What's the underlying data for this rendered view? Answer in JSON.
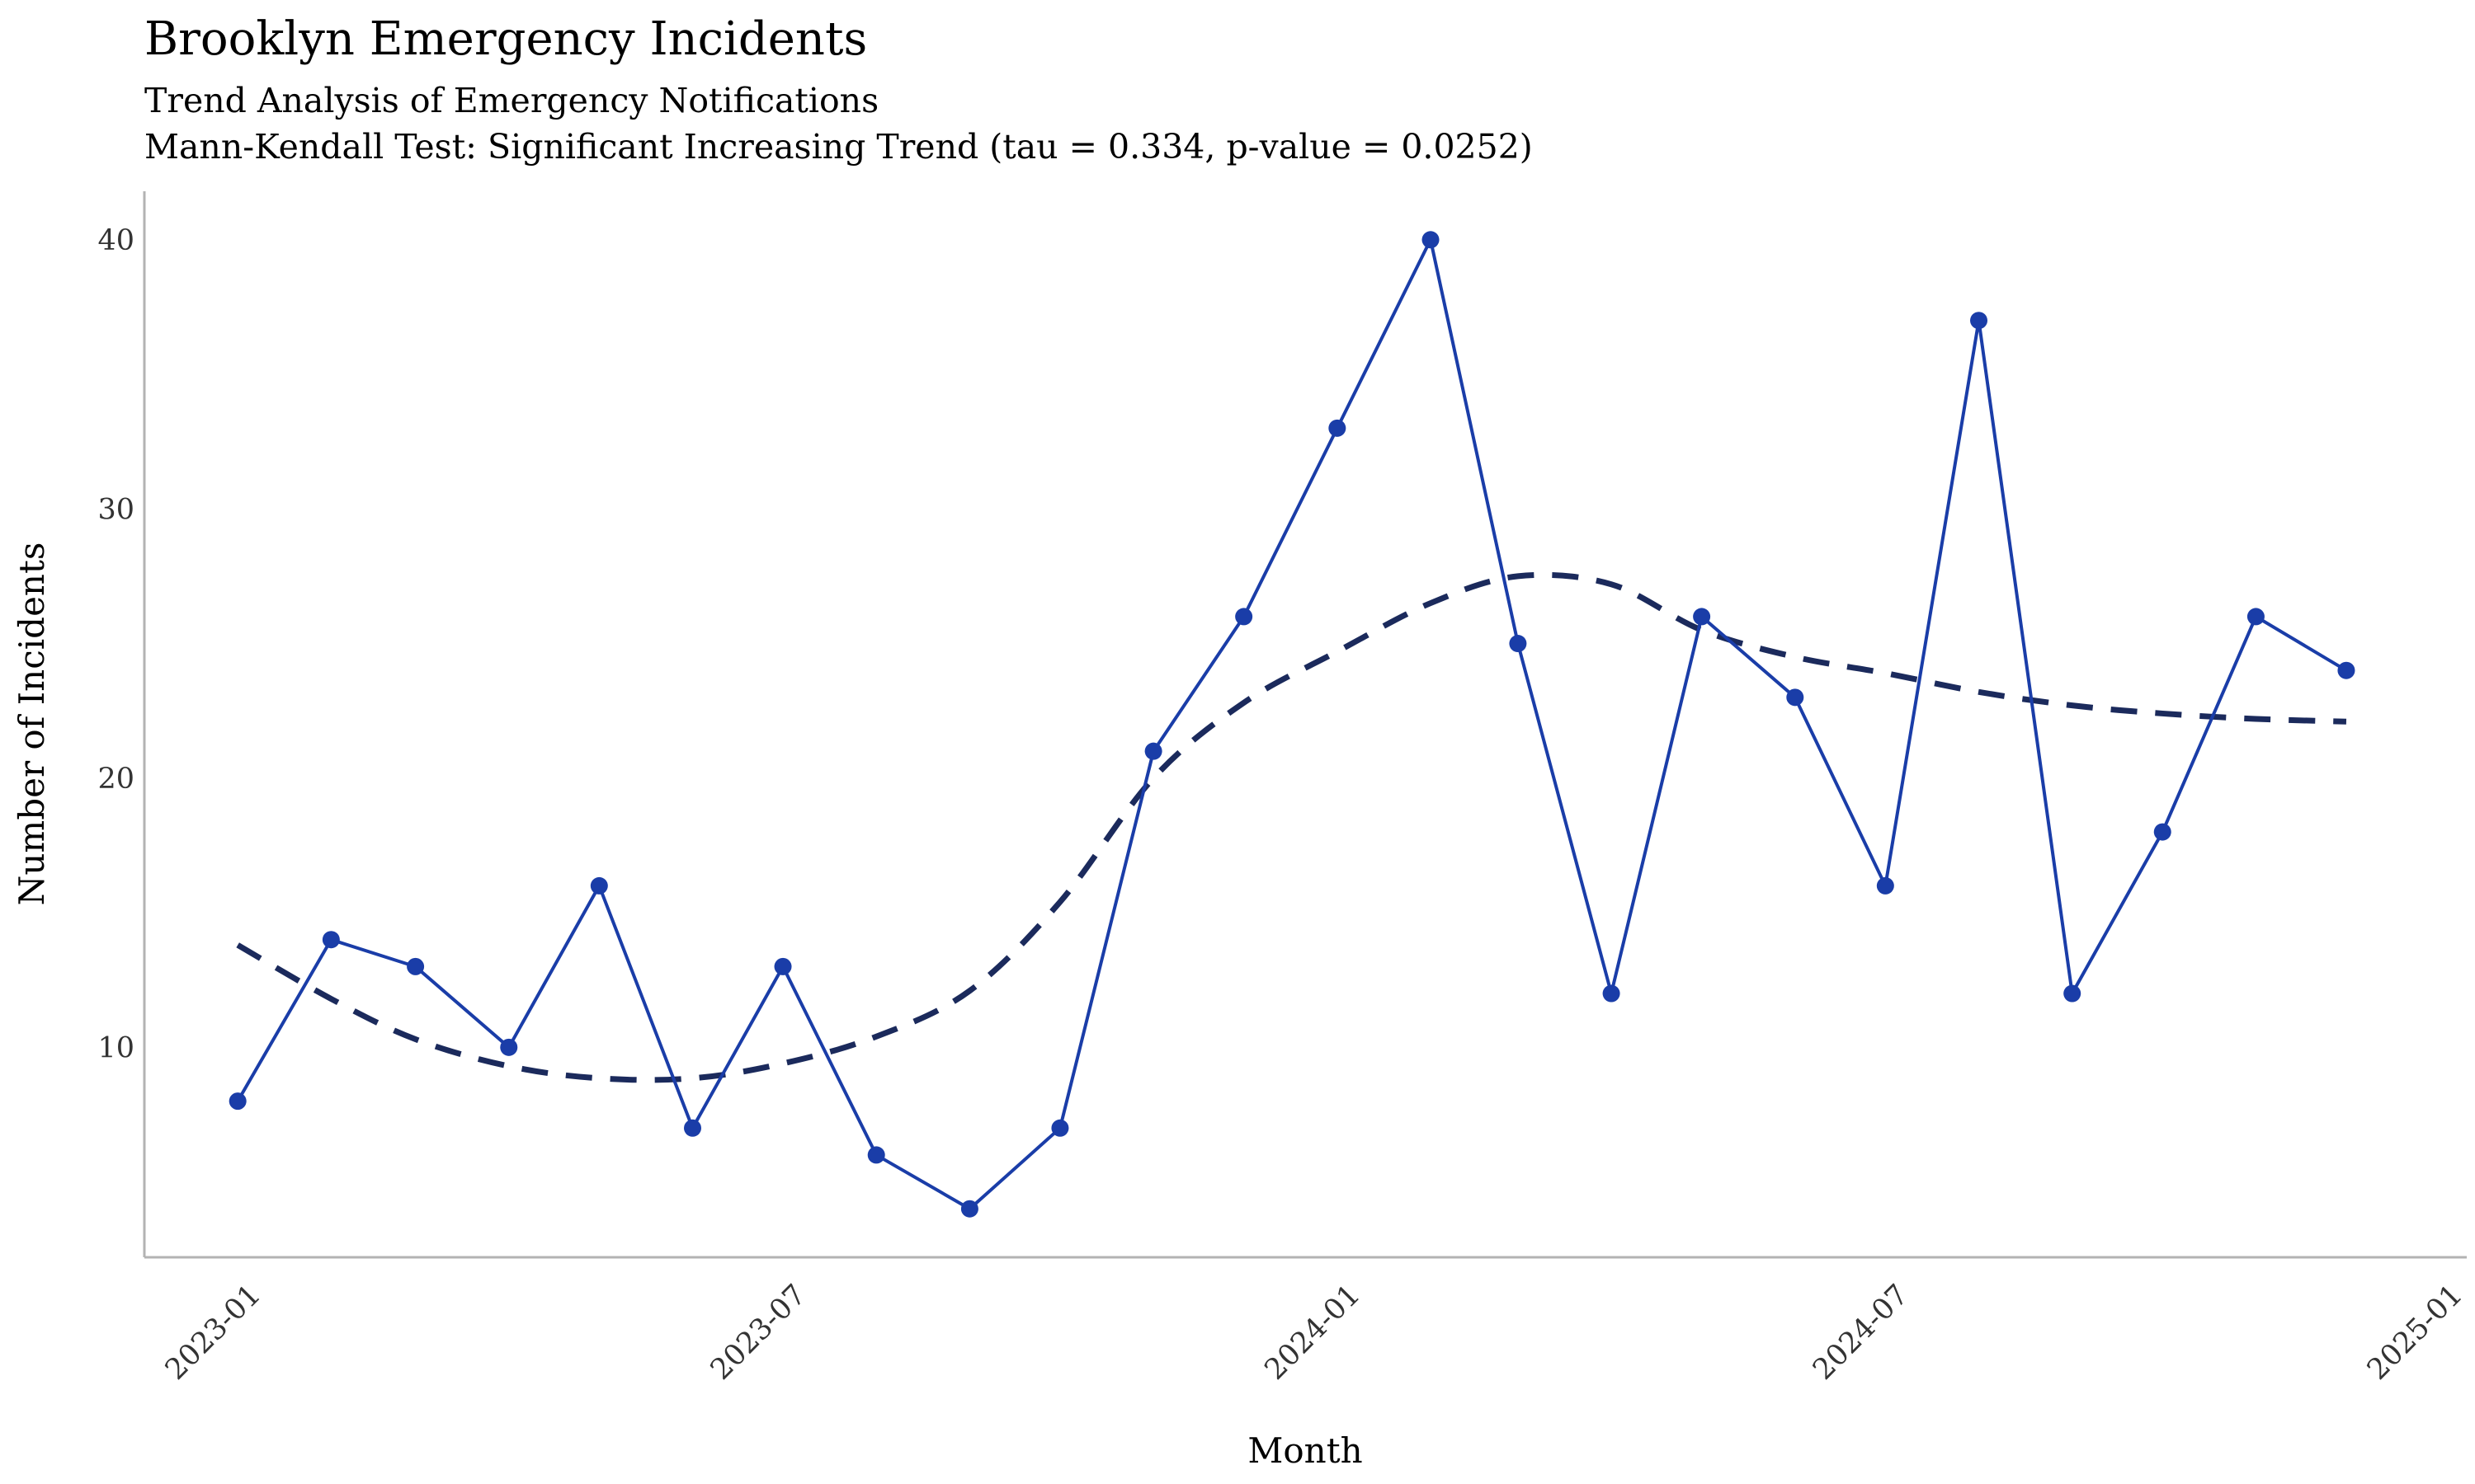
{
  "chart_data": {
    "type": "line",
    "title": "Brooklyn Emergency Incidents",
    "subtitle_lines": [
      "Trend Analysis of Emergency Notifications",
      "Mann-Kendall Test: Significant Increasing Trend (tau = 0.334, p-value = 0.0252)"
    ],
    "xlabel": "Month",
    "ylabel": "Number of Incidents",
    "x_ticks": [
      "2023-01",
      "2023-07",
      "2024-01",
      "2024-07",
      "2025-01"
    ],
    "y_ticks": [
      10,
      20,
      30,
      40
    ],
    "ylim": [
      2.2,
      41.8
    ],
    "xlim": [
      "2022-12-01",
      "2025-01-10"
    ],
    "grid": false,
    "series": [
      {
        "style": "solid-line-with-points",
        "color": "#1a3da8",
        "x": [
          "2023-01-01",
          "2023-02-01",
          "2023-03-01",
          "2023-04-01",
          "2023-05-01",
          "2023-06-01",
          "2023-07-01",
          "2023-08-01",
          "2023-09-01",
          "2023-10-01",
          "2023-11-01",
          "2023-12-01",
          "2024-01-01",
          "2024-02-01",
          "2024-03-01",
          "2024-04-01",
          "2024-05-01",
          "2024-06-01",
          "2024-07-01",
          "2024-08-01",
          "2024-09-01",
          "2024-10-01",
          "2024-11-01",
          "2024-12-01"
        ],
        "y": [
          8,
          14,
          13,
          10,
          16,
          7,
          13,
          6,
          4,
          7,
          21,
          26,
          33,
          40,
          25,
          12,
          26,
          23,
          16,
          37,
          12,
          18,
          26,
          24
        ]
      },
      {
        "style": "dashed-smooth-trend",
        "color": "#1b2a5c",
        "x": [
          "2023-01-01",
          "2023-02-01",
          "2023-03-01",
          "2023-04-01",
          "2023-05-01",
          "2023-06-01",
          "2023-07-01",
          "2023-08-01",
          "2023-09-01",
          "2023-10-01",
          "2023-11-01",
          "2023-12-01",
          "2024-01-01",
          "2024-02-01",
          "2024-03-01",
          "2024-04-01",
          "2024-05-01",
          "2024-06-01",
          "2024-07-01",
          "2024-08-01",
          "2024-09-01",
          "2024-10-01",
          "2024-11-01",
          "2024-12-01"
        ],
        "y": [
          13.8,
          11.8,
          10.3,
          9.3,
          8.85,
          8.85,
          9.4,
          10.4,
          12.1,
          15.4,
          20.0,
          22.8,
          24.7,
          26.5,
          27.5,
          27.2,
          25.5,
          24.5,
          23.9,
          23.2,
          22.7,
          22.4,
          22.2,
          22.1
        ]
      }
    ],
    "colors": {
      "points_line": "#1a3da8",
      "trend_line": "#1b2a5c",
      "axis": "#b3b3b3",
      "tick_text": "#333333"
    }
  }
}
